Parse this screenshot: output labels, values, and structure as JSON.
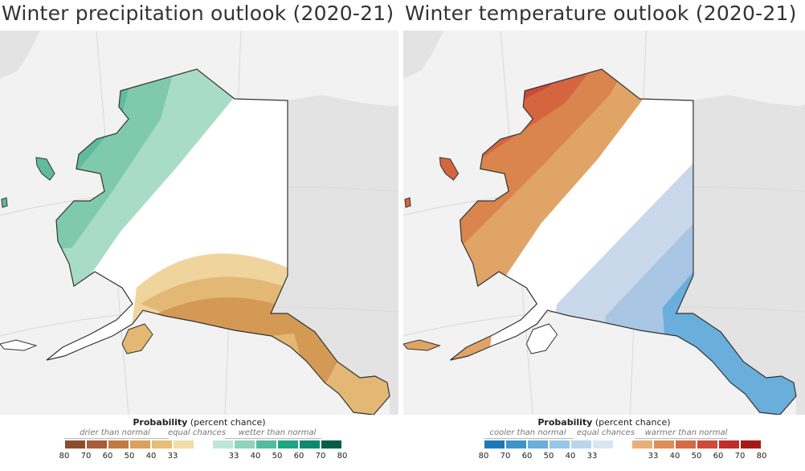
{
  "panels": [
    {
      "title": "Winter precipitation outlook (2020-21)",
      "legend": {
        "title_bold": "Probability",
        "title_rest": " (percent chance)",
        "left_category": "drier than normal",
        "middle_category": "equal chances",
        "right_category": "wetter than normal",
        "left_ticks": [
          "80",
          "70",
          "60",
          "50",
          "40",
          "33"
        ],
        "right_ticks": [
          "33",
          "40",
          "50",
          "60",
          "70",
          "80"
        ],
        "left_colors": [
          "#8a4d2e",
          "#a65d3a",
          "#c27a44",
          "#dba05b",
          "#e8bd78",
          "#f3dcaa"
        ],
        "right_colors": [
          "#bfe6d7",
          "#8dd4bb",
          "#52bd9e",
          "#1ea585",
          "#0b8a6c",
          "#065e49"
        ]
      },
      "map_colors": {
        "wet_40": "#a9dcc8",
        "wet_50": "#7fcaae",
        "wet_60": "#5fbb9c",
        "dry_33": "#f0d49e",
        "dry_40": "#e2b874",
        "dry_50": "#d49a55",
        "land": "#ffffff",
        "water": "#f2f2f2",
        "other_land": "#e3e3e3"
      }
    },
    {
      "title": "Winter temperature outlook (2020-21)",
      "legend": {
        "title_bold": "Probability",
        "title_rest": " (percent chance)",
        "left_category": "cooler than normal",
        "middle_category": "equal chances",
        "right_category": "warmer than normal",
        "left_ticks": [
          "80",
          "70",
          "60",
          "50",
          "40",
          "33"
        ],
        "right_ticks": [
          "33",
          "40",
          "50",
          "60",
          "70",
          "80"
        ],
        "left_colors": [
          "#1f78b4",
          "#3f93cc",
          "#6aaedc",
          "#98c6e6",
          "#bcd5ea",
          "#d9e5f1"
        ],
        "right_colors": [
          "#e6b07a",
          "#dd8e58",
          "#d76a45",
          "#cf4a3a",
          "#c12c2c",
          "#a61818"
        ]
      },
      "map_colors": {
        "cool_33": "#c9d8ea",
        "cool_40": "#a9c6e4",
        "cool_50": "#6aaedc",
        "warm_33": "#e0a467",
        "warm_40": "#d9854d",
        "warm_50": "#d5653f",
        "warm_60": "#cc4a35",
        "land": "#ffffff",
        "water": "#f2f2f2",
        "other_land": "#e3e3e3"
      }
    }
  ]
}
